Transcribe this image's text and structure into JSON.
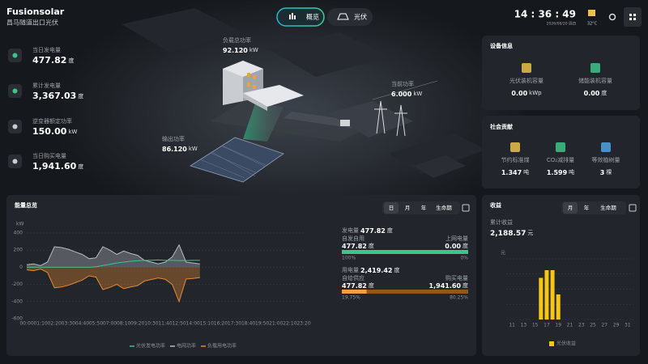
{
  "header": {
    "brand": "Fusionsolar",
    "station": "昌马隧道出口光伏",
    "tabs": [
      "概览",
      "光伏"
    ],
    "time": "14 : 36 : 49",
    "date": "2026/08/20 周四",
    "temperature": "32°C"
  },
  "stats": [
    {
      "label": "当日发电量",
      "value": "477.82",
      "unit": "度"
    },
    {
      "label": "累计发电量",
      "value": "3,367.03",
      "unit": "度"
    },
    {
      "label": "逆变器额定功率",
      "value": "150.00",
      "unit": "kW"
    },
    {
      "label": "当日购买电量",
      "value": "1,941.60",
      "unit": "度"
    }
  ],
  "flow": [
    {
      "label": "负载总功率",
      "value": "92.120",
      "unit": "kW"
    },
    {
      "label": "当前功率",
      "value": "6.000",
      "unit": "kW"
    },
    {
      "label": "输出功率",
      "value": "86.120",
      "unit": "kW"
    }
  ],
  "device": {
    "title": "设备信息",
    "items": [
      {
        "label": "光伏装机容量",
        "value": "0.00",
        "unit": "kWp"
      },
      {
        "label": "储能装机容量",
        "value": "0.00",
        "unit": "度"
      }
    ]
  },
  "social": {
    "title": "社会贡献",
    "items": [
      {
        "label": "节约标准煤",
        "value": "1.347",
        "unit": "吨"
      },
      {
        "label": "CO₂减排量",
        "value": "1.599",
        "unit": "吨"
      },
      {
        "label": "等效植树量",
        "value": "3",
        "unit": "棵"
      }
    ]
  },
  "energy_tabs": [
    "日",
    "月",
    "年",
    "生命期"
  ],
  "energy_summary": [
    {
      "label": "发电量",
      "value": "477.82",
      "unit": "度",
      "left": {
        "label": "自发自用",
        "value": "477.82",
        "unit": "度",
        "share": {
          "value": 100,
          "label": "100%"
        }
      },
      "right": {
        "label": "上网电量",
        "value": "0.00",
        "unit": "度",
        "share": {
          "value": 0,
          "label": "0%"
        }
      }
    },
    {
      "label": "用电量",
      "value": "2,419.42",
      "unit": "度",
      "left": {
        "label": "自给供应",
        "value": "477.82",
        "unit": "度",
        "share": {
          "value": 19.75,
          "label": "19.75%"
        }
      },
      "right": {
        "label": "购买电量",
        "value": "1,941.60",
        "unit": "度",
        "share": {
          "value": 80.25,
          "label": "80.25%"
        }
      }
    }
  ],
  "income_tabs": [
    "月",
    "年",
    "生命期"
  ],
  "income_total": {
    "label": "累计收益",
    "value": "2,188.57",
    "unit": "元"
  },
  "chart_data": [
    {
      "type": "line",
      "title": "能量总览",
      "y_label": "kW",
      "categories": [
        "00:00",
        null,
        "01:10",
        null,
        "02:20",
        null,
        "03:30",
        null,
        "04:40",
        null,
        "05:50",
        null,
        "07:00",
        null,
        "08:10",
        null,
        "09:20",
        null,
        "10:30",
        null,
        "11:40",
        null,
        "12:50",
        null,
        "14:00",
        null,
        "15:10",
        null,
        "16:20",
        null,
        "17:30",
        null,
        "18:40",
        null,
        "19:50",
        null,
        "21:00",
        null,
        "22:10",
        null,
        "23:20"
      ],
      "ylim": [
        -600,
        400
      ],
      "yticks": [
        400,
        200,
        0,
        -200,
        -400,
        -600
      ],
      "series": [
        {
          "name": "光伏发电功率",
          "color": "#3ec48a",
          "values": [
            0,
            0,
            0,
            0,
            0,
            0,
            0,
            0,
            0,
            0,
            5,
            20,
            35,
            50,
            60,
            70,
            75,
            80,
            82,
            85,
            80,
            80,
            78,
            78,
            80,
            80,
            null,
            null,
            null,
            null,
            null,
            null,
            null,
            null,
            null,
            null,
            null,
            null,
            null,
            null,
            null
          ]
        },
        {
          "name": "电网功率",
          "color": "#b8bcc2",
          "values": [
            30,
            40,
            20,
            60,
            240,
            230,
            210,
            180,
            150,
            100,
            110,
            240,
            200,
            150,
            190,
            160,
            140,
            80,
            60,
            40,
            60,
            120,
            260,
            60,
            50,
            40,
            null,
            null,
            null,
            null,
            null,
            null,
            null,
            null,
            null,
            null,
            null,
            null,
            null,
            null,
            null
          ]
        },
        {
          "name": "负载用电功率",
          "color": "#e8892d",
          "values": [
            -30,
            -40,
            -20,
            -60,
            -240,
            -230,
            -210,
            -180,
            -150,
            -100,
            -115,
            -260,
            -235,
            -200,
            -250,
            -230,
            -215,
            -160,
            -142,
            -125,
            -140,
            -200,
            -400,
            -138,
            -130,
            -120,
            null,
            null,
            null,
            null,
            null,
            null,
            null,
            null,
            null,
            null,
            null,
            null,
            null,
            null,
            null
          ]
        }
      ]
    },
    {
      "type": "bar",
      "title": "收益",
      "y_label": "元",
      "x": [
        16,
        17,
        18,
        19
      ],
      "xlim": [
        10,
        32
      ],
      "xticks": [
        11,
        13,
        15,
        17,
        19,
        21,
        23,
        25,
        27,
        29,
        31
      ],
      "ylim": [
        0,
        300
      ],
      "series": [
        {
          "name": "光伏收益",
          "color": "#f5c518",
          "values": [
            206,
            244,
            244,
            124
          ]
        }
      ]
    }
  ]
}
